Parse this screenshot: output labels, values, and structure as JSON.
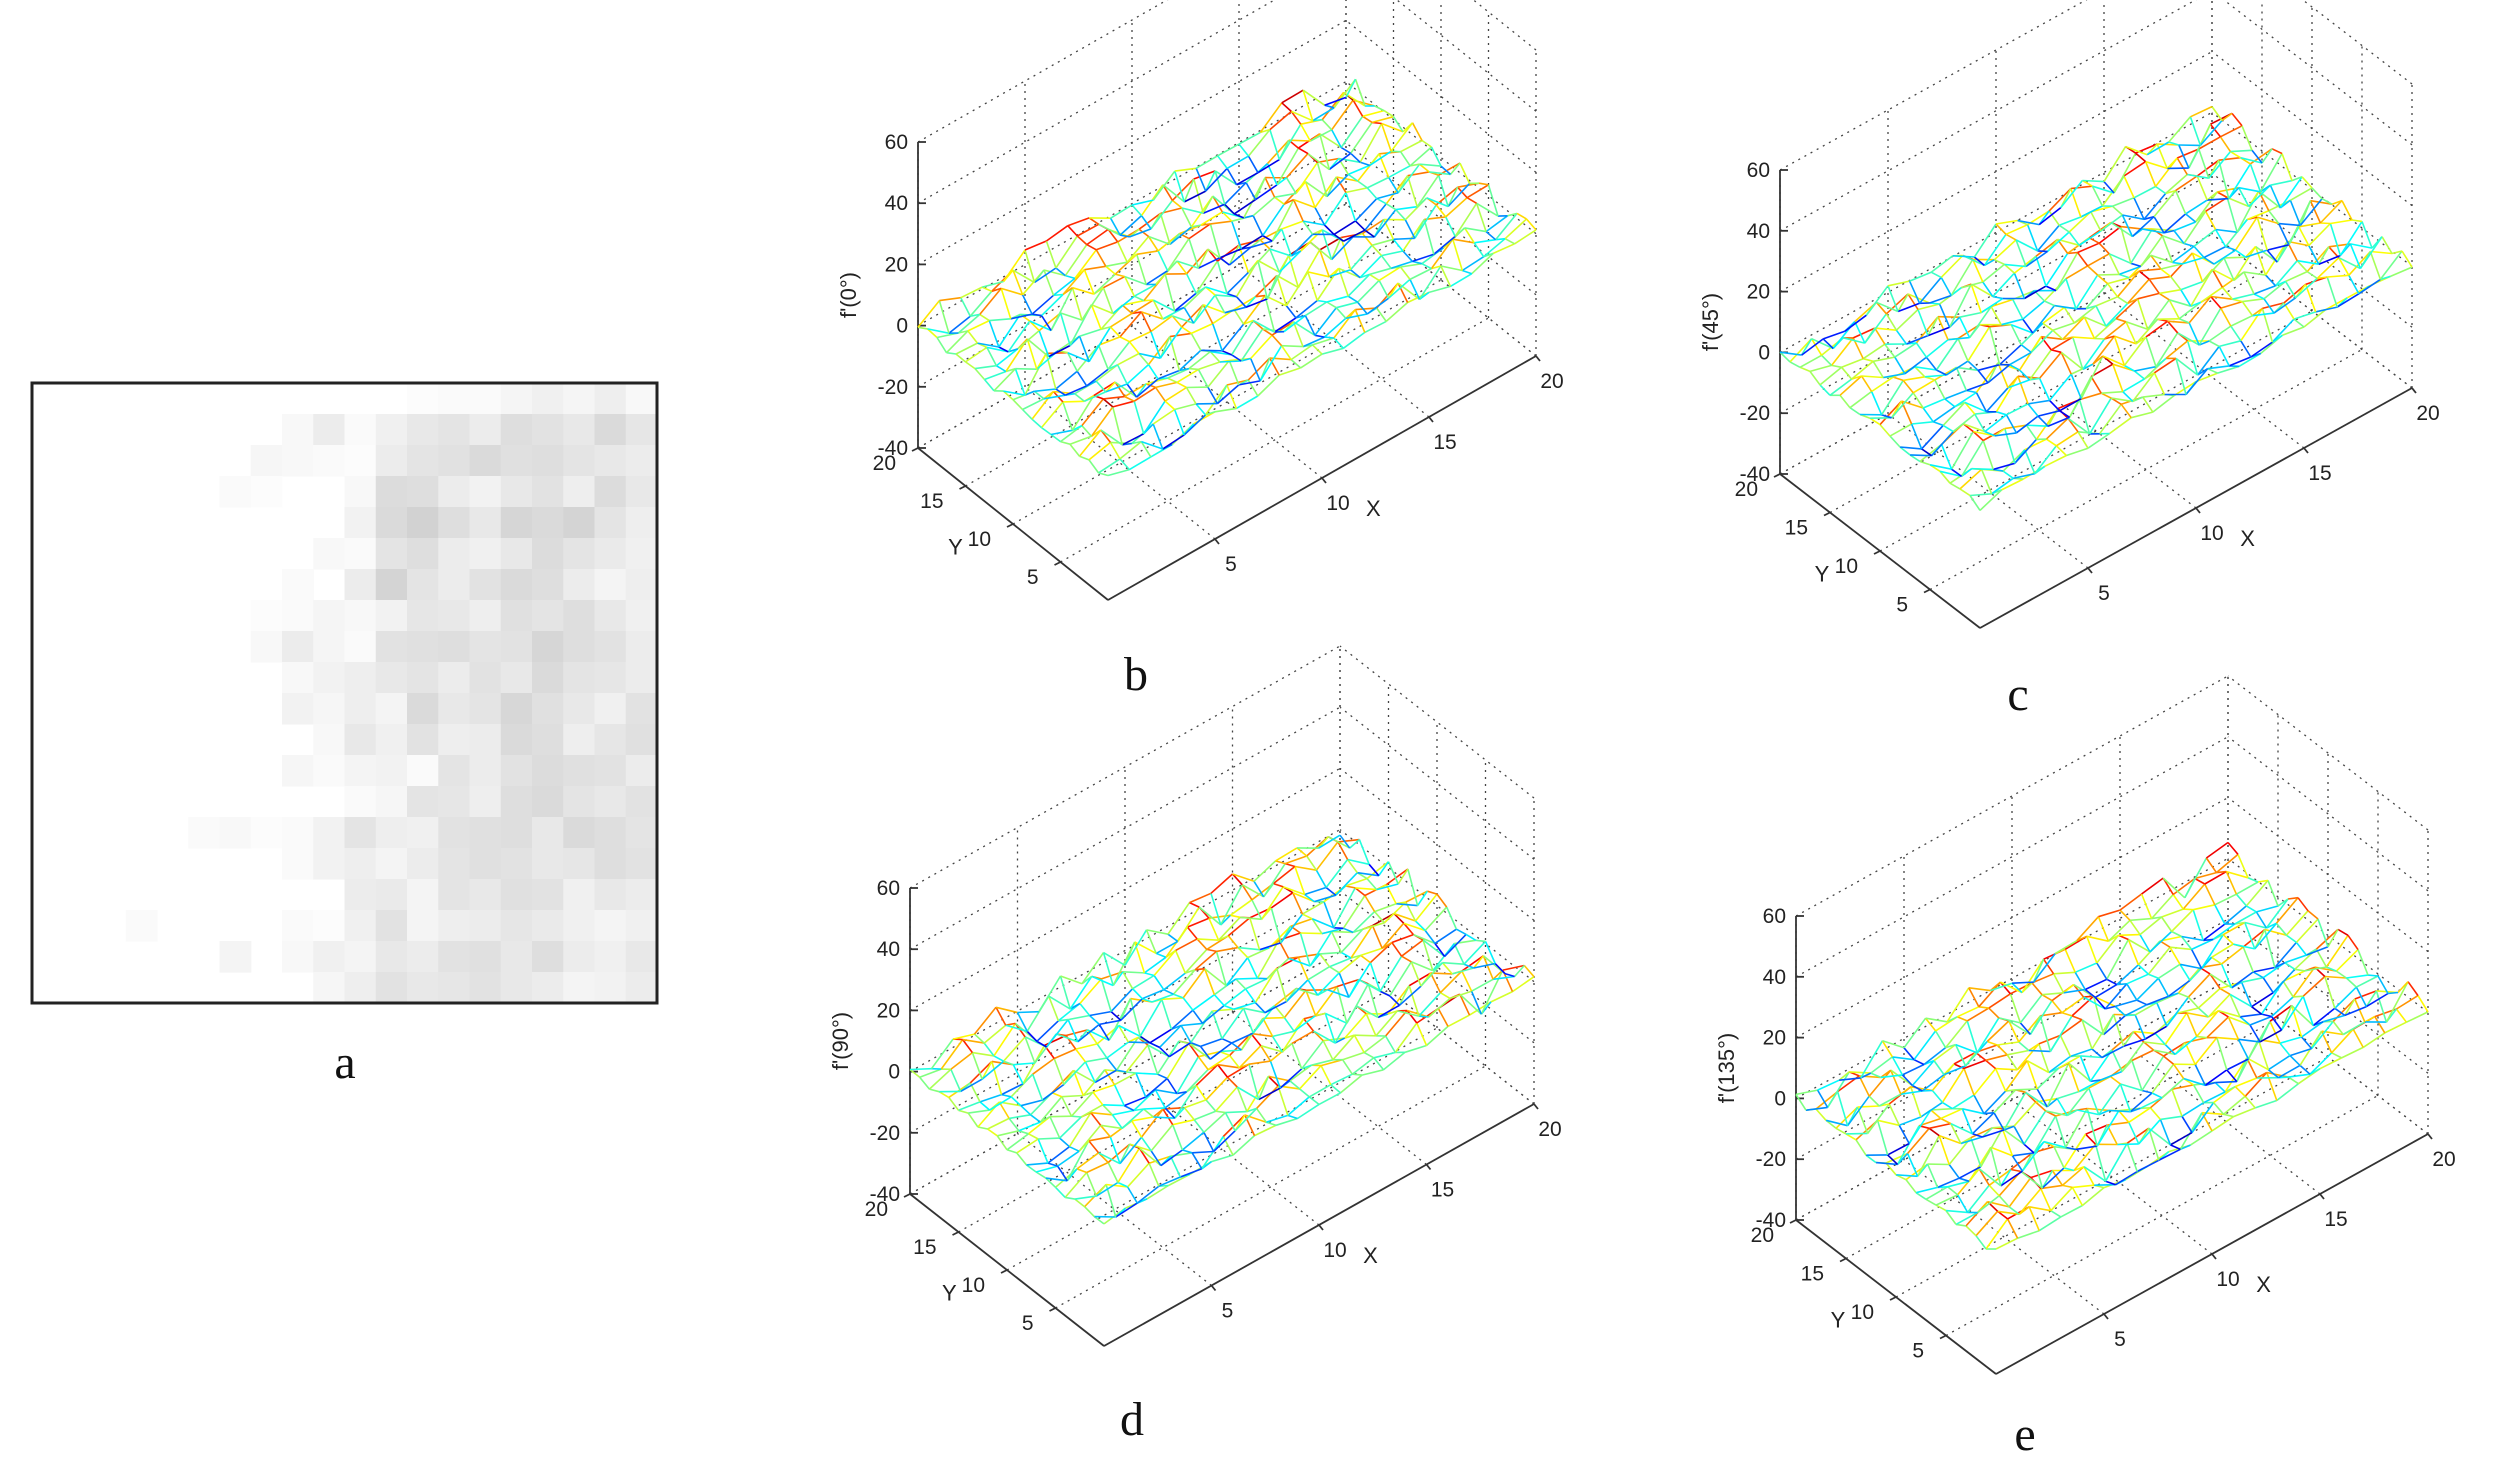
{
  "panel_labels": {
    "a": "a",
    "b": "b",
    "c": "c",
    "d": "d",
    "e": "e"
  },
  "image_a": {
    "rows": 20,
    "cols": 20,
    "gray_levels": [
      [
        255,
        255,
        255,
        255,
        255,
        255,
        255,
        255,
        255,
        255,
        255,
        255,
        252,
        250,
        250,
        245,
        240,
        245,
        238,
        248
      ],
      [
        255,
        255,
        255,
        255,
        255,
        255,
        255,
        255,
        248,
        236,
        250,
        240,
        232,
        228,
        236,
        222,
        226,
        232,
        218,
        230
      ],
      [
        255,
        255,
        255,
        255,
        255,
        255,
        255,
        246,
        248,
        250,
        252,
        236,
        228,
        225,
        218,
        224,
        222,
        228,
        232,
        236
      ],
      [
        255,
        255,
        255,
        255,
        255,
        255,
        250,
        252,
        255,
        255,
        248,
        220,
        222,
        236,
        242,
        232,
        226,
        238,
        220,
        232
      ],
      [
        255,
        255,
        255,
        255,
        255,
        255,
        255,
        255,
        255,
        255,
        242,
        218,
        210,
        222,
        232,
        214,
        218,
        212,
        228,
        238
      ],
      [
        255,
        255,
        255,
        255,
        255,
        255,
        255,
        255,
        255,
        248,
        250,
        228,
        222,
        236,
        240,
        232,
        220,
        228,
        234,
        240
      ],
      [
        255,
        255,
        255,
        255,
        255,
        255,
        255,
        255,
        250,
        255,
        236,
        212,
        228,
        236,
        226,
        218,
        222,
        236,
        244,
        238
      ],
      [
        255,
        255,
        255,
        255,
        255,
        255,
        255,
        252,
        250,
        245,
        248,
        242,
        230,
        232,
        238,
        224,
        228,
        222,
        232,
        240
      ],
      [
        255,
        255,
        255,
        255,
        255,
        255,
        255,
        248,
        236,
        245,
        250,
        226,
        224,
        222,
        228,
        226,
        214,
        222,
        226,
        236
      ],
      [
        255,
        255,
        255,
        255,
        255,
        255,
        255,
        255,
        248,
        242,
        238,
        232,
        228,
        236,
        226,
        232,
        218,
        228,
        230,
        236
      ],
      [
        255,
        255,
        255,
        255,
        255,
        255,
        255,
        255,
        242,
        246,
        238,
        244,
        218,
        232,
        228,
        215,
        224,
        232,
        240,
        226
      ],
      [
        255,
        255,
        255,
        255,
        255,
        255,
        255,
        255,
        255,
        248,
        232,
        240,
        226,
        238,
        236,
        218,
        222,
        238,
        230,
        224
      ],
      [
        255,
        255,
        255,
        255,
        255,
        255,
        255,
        255,
        246,
        250,
        244,
        242,
        250,
        228,
        236,
        226,
        220,
        224,
        226,
        236
      ],
      [
        255,
        255,
        255,
        255,
        255,
        255,
        255,
        255,
        255,
        255,
        250,
        246,
        228,
        230,
        238,
        222,
        218,
        228,
        232,
        226
      ],
      [
        255,
        255,
        255,
        255,
        255,
        250,
        248,
        252,
        250,
        242,
        228,
        238,
        240,
        226,
        224,
        222,
        232,
        218,
        222,
        228
      ],
      [
        255,
        255,
        255,
        255,
        255,
        255,
        255,
        255,
        250,
        242,
        238,
        244,
        236,
        228,
        224,
        226,
        232,
        230,
        222,
        226
      ],
      [
        255,
        255,
        255,
        255,
        255,
        255,
        255,
        255,
        255,
        255,
        236,
        234,
        244,
        228,
        232,
        224,
        226,
        240,
        232,
        236
      ],
      [
        255,
        255,
        255,
        250,
        255,
        255,
        255,
        255,
        250,
        252,
        240,
        226,
        244,
        238,
        236,
        230,
        234,
        240,
        244,
        240
      ],
      [
        255,
        255,
        255,
        255,
        255,
        255,
        244,
        255,
        248,
        240,
        244,
        232,
        236,
        226,
        224,
        232,
        222,
        236,
        240,
        232
      ],
      [
        255,
        255,
        255,
        255,
        255,
        255,
        255,
        255,
        255,
        246,
        238,
        226,
        232,
        230,
        226,
        232,
        236,
        244,
        242,
        236
      ]
    ]
  },
  "chart_data": [
    {
      "type": "surface",
      "panel": "b",
      "zlabel": "f'(0°)",
      "xlabel": "X",
      "ylabel": "Y",
      "xlim": [
        0,
        20
      ],
      "ylim": [
        0,
        20
      ],
      "zlim": [
        -40,
        60
      ],
      "x_ticks": [
        "5",
        "10",
        "15",
        "20"
      ],
      "y_ticks": [
        "5",
        "10",
        "15",
        "20"
      ],
      "z_ticks": [
        "-40",
        "-20",
        "0",
        "20",
        "40",
        "60"
      ],
      "grid": true,
      "surface_range": [
        -6,
        6
      ]
    },
    {
      "type": "surface",
      "panel": "c",
      "zlabel": "f'(45°)",
      "xlabel": "X",
      "ylabel": "Y",
      "xlim": [
        0,
        20
      ],
      "ylim": [
        0,
        20
      ],
      "zlim": [
        -40,
        60
      ],
      "x_ticks": [
        "5",
        "10",
        "15",
        "20"
      ],
      "y_ticks": [
        "5",
        "10",
        "15",
        "20"
      ],
      "z_ticks": [
        "-40",
        "-20",
        "0",
        "20",
        "40",
        "60"
      ],
      "grid": true,
      "surface_range": [
        -6,
        6
      ]
    },
    {
      "type": "surface",
      "panel": "d",
      "zlabel": "f'(90°)",
      "xlabel": "X",
      "ylabel": "Y",
      "xlim": [
        0,
        20
      ],
      "ylim": [
        0,
        20
      ],
      "zlim": [
        -40,
        60
      ],
      "x_ticks": [
        "5",
        "10",
        "15",
        "20"
      ],
      "y_ticks": [
        "5",
        "10",
        "15",
        "20"
      ],
      "z_ticks": [
        "-40",
        "-20",
        "0",
        "20",
        "40",
        "60"
      ],
      "grid": true,
      "surface_range": [
        -6,
        6
      ]
    },
    {
      "type": "surface",
      "panel": "e",
      "zlabel": "f'(135°)",
      "xlabel": "X",
      "ylabel": "Y",
      "xlim": [
        0,
        20
      ],
      "ylim": [
        0,
        20
      ],
      "zlim": [
        -40,
        60
      ],
      "x_ticks": [
        "5",
        "10",
        "15",
        "20"
      ],
      "y_ticks": [
        "5",
        "10",
        "15",
        "20"
      ],
      "z_ticks": [
        "-40",
        "-20",
        "0",
        "20",
        "40",
        "60"
      ],
      "grid": true,
      "surface_range": [
        -6,
        6
      ]
    }
  ]
}
